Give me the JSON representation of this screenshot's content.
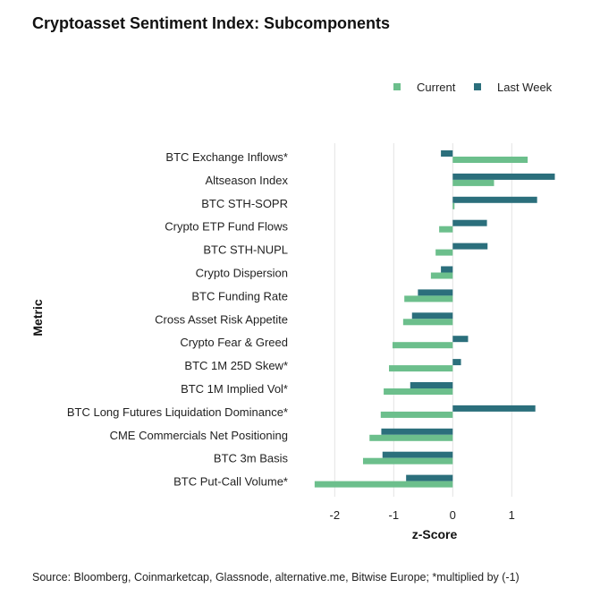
{
  "chart_data": {
    "type": "bar",
    "orientation": "horizontal",
    "title": "Cryptoasset Sentiment Index: Subcomponents",
    "xlabel": "z-Score",
    "ylabel": "Metric",
    "xlim": [
      -2.5,
      1.8
    ],
    "xticks": [
      -2,
      -1,
      0,
      1
    ],
    "grid": "vertical",
    "legend_placement": "top-right",
    "categories": [
      "BTC Exchange Inflows*",
      "Altseason Index",
      "BTC STH-SOPR",
      "Crypto ETP Fund Flows",
      "BTC STH-NUPL",
      "Crypto Dispersion",
      "BTC Funding Rate",
      "Cross Asset Risk Appetite",
      "Crypto Fear & Greed",
      "BTC 1M 25D Skew*",
      "BTC 1M Implied Vol*",
      "BTC Long Futures Liquidation Dominance*",
      "CME Commercials Net Positioning",
      "BTC 3m Basis",
      "BTC Put-Call Volume*"
    ],
    "series": [
      {
        "name": "Current",
        "color": "#6cbf8c",
        "values": [
          1.27,
          0.7,
          0.03,
          -0.23,
          -0.29,
          -0.37,
          -0.82,
          -0.84,
          -1.02,
          -1.08,
          -1.17,
          -1.22,
          -1.41,
          -1.52,
          -2.34
        ]
      },
      {
        "name": "Last Week",
        "color": "#2b6f7c",
        "values": [
          -0.2,
          1.73,
          1.43,
          0.58,
          0.59,
          -0.2,
          -0.59,
          -0.69,
          0.26,
          0.14,
          -0.72,
          1.4,
          -1.21,
          -1.19,
          -0.79
        ]
      }
    ],
    "source": "Source: Bloomberg, Coinmarketcap, Glassnode, alternative.me, Bitwise Europe; *multiplied by (-1)"
  }
}
